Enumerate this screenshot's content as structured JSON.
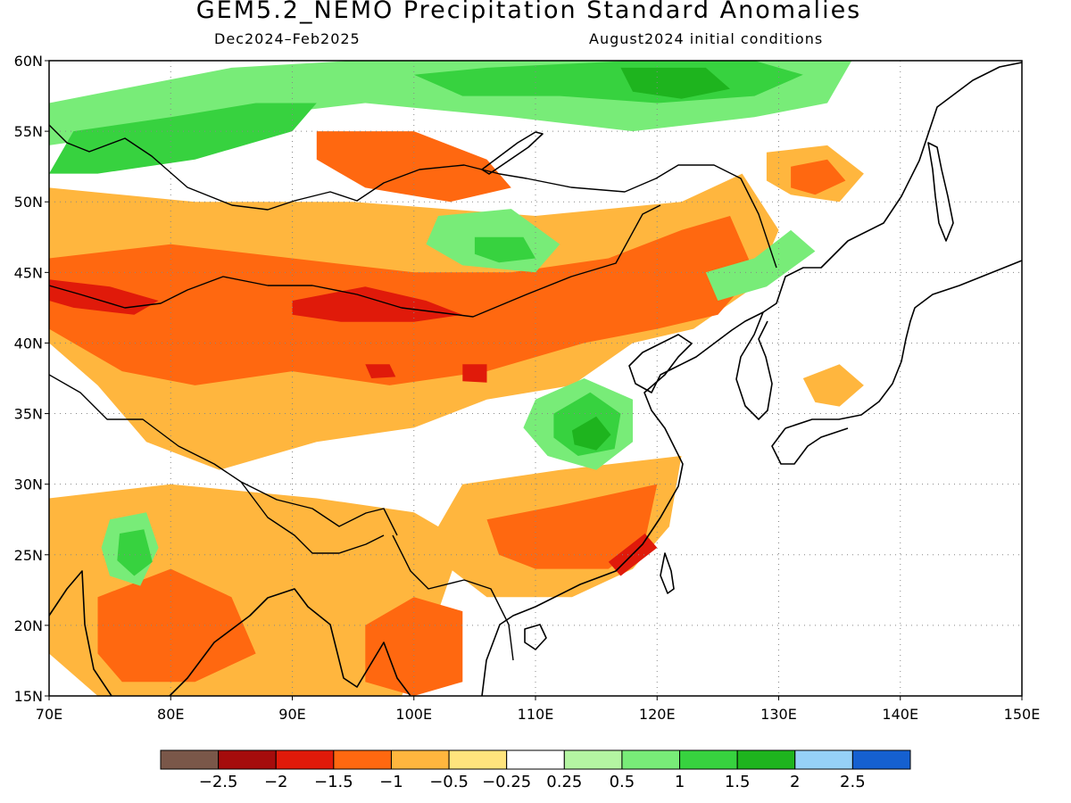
{
  "title": "GEM5.2_NEMO Precipitation Standard Anomalies",
  "season": "Dec2024–Feb2025",
  "initial_conditions": "August2024 initial conditions",
  "map": {
    "lon_range": [
      70,
      150
    ],
    "lat_range": [
      15,
      60
    ],
    "lon_ticks": [
      {
        "v": 70,
        "label": "70E"
      },
      {
        "v": 80,
        "label": "80E"
      },
      {
        "v": 90,
        "label": "90E"
      },
      {
        "v": 100,
        "label": "100E"
      },
      {
        "v": 110,
        "label": "110E"
      },
      {
        "v": 120,
        "label": "120E"
      },
      {
        "v": 130,
        "label": "130E"
      },
      {
        "v": 140,
        "label": "140E"
      },
      {
        "v": 150,
        "label": "150E"
      }
    ],
    "lat_ticks": [
      {
        "v": 15,
        "label": "15N"
      },
      {
        "v": 20,
        "label": "20N"
      },
      {
        "v": 25,
        "label": "25N"
      },
      {
        "v": 30,
        "label": "30N"
      },
      {
        "v": 35,
        "label": "35N"
      },
      {
        "v": 40,
        "label": "40N"
      },
      {
        "v": 45,
        "label": "45N"
      },
      {
        "v": 50,
        "label": "50N"
      },
      {
        "v": 55,
        "label": "55N"
      },
      {
        "v": 60,
        "label": "60N"
      }
    ],
    "grid": "dotted",
    "anomaly_regions": [
      {
        "level": -0.5,
        "poly": [
          [
            70,
            51
          ],
          [
            82,
            50
          ],
          [
            95,
            50
          ],
          [
            110,
            49
          ],
          [
            122,
            50
          ],
          [
            127,
            52
          ],
          [
            130,
            48
          ],
          [
            128,
            44
          ],
          [
            123,
            41
          ],
          [
            118,
            40
          ],
          [
            113,
            37
          ],
          [
            106,
            36
          ],
          [
            100,
            34
          ],
          [
            92,
            33
          ],
          [
            84,
            31
          ],
          [
            78,
            33
          ],
          [
            74,
            37
          ],
          [
            70,
            40
          ]
        ]
      },
      {
        "level": -1,
        "poly": [
          [
            70,
            46
          ],
          [
            80,
            47
          ],
          [
            90,
            46
          ],
          [
            100,
            45
          ],
          [
            108,
            45
          ],
          [
            116,
            46
          ],
          [
            122,
            48
          ],
          [
            126,
            49
          ],
          [
            128,
            45
          ],
          [
            125,
            42
          ],
          [
            120,
            41
          ],
          [
            114,
            40
          ],
          [
            106,
            38
          ],
          [
            98,
            37
          ],
          [
            90,
            38
          ],
          [
            82,
            37
          ],
          [
            76,
            38
          ],
          [
            70,
            41
          ]
        ]
      },
      {
        "level": -1,
        "poly": [
          [
            92,
            55
          ],
          [
            100,
            55
          ],
          [
            106,
            53
          ],
          [
            108,
            51
          ],
          [
            103,
            50
          ],
          [
            96,
            51
          ],
          [
            92,
            53
          ]
        ]
      },
      {
        "level": -1.5,
        "poly": [
          [
            70,
            44.5
          ],
          [
            75,
            44
          ],
          [
            79,
            43
          ],
          [
            77,
            42
          ],
          [
            72,
            42.5
          ],
          [
            70,
            43
          ]
        ]
      },
      {
        "level": -1.5,
        "poly": [
          [
            90,
            43
          ],
          [
            96,
            44
          ],
          [
            101,
            43
          ],
          [
            104,
            42
          ],
          [
            100,
            41.5
          ],
          [
            94,
            41.5
          ],
          [
            90,
            42
          ]
        ]
      },
      {
        "level": -1.5,
        "poly": [
          [
            96,
            38.5
          ],
          [
            98,
            38.5
          ],
          [
            98.5,
            37.6
          ],
          [
            96.5,
            37.5
          ]
        ]
      },
      {
        "level": -1.5,
        "poly": [
          [
            104,
            38.5
          ],
          [
            106,
            38.5
          ],
          [
            106,
            37.2
          ],
          [
            104,
            37.3
          ]
        ]
      },
      {
        "level": -0.5,
        "poly": [
          [
            104,
            30
          ],
          [
            112,
            31
          ],
          [
            122,
            32
          ],
          [
            121,
            27
          ],
          [
            118,
            24
          ],
          [
            113,
            22
          ],
          [
            106,
            22
          ],
          [
            103,
            24
          ],
          [
            102,
            27
          ]
        ]
      },
      {
        "level": -1,
        "poly": [
          [
            106,
            27.5
          ],
          [
            112,
            28.5
          ],
          [
            120,
            30
          ],
          [
            119,
            26
          ],
          [
            116,
            24
          ],
          [
            110,
            24
          ],
          [
            107,
            25
          ]
        ]
      },
      {
        "level": -1.5,
        "poly": [
          [
            116,
            24.5
          ],
          [
            119,
            26.5
          ],
          [
            120,
            25.5
          ],
          [
            117,
            23.5
          ]
        ]
      },
      {
        "level": -0.5,
        "poly": [
          [
            70,
            29
          ],
          [
            80,
            30
          ],
          [
            92,
            29
          ],
          [
            100,
            28
          ],
          [
            104,
            26
          ],
          [
            102,
            21
          ],
          [
            99,
            15
          ],
          [
            84,
            15
          ],
          [
            74,
            15
          ],
          [
            70,
            18
          ]
        ]
      },
      {
        "level": -1,
        "poly": [
          [
            74,
            22
          ],
          [
            80,
            24
          ],
          [
            85,
            22
          ],
          [
            87,
            18
          ],
          [
            82,
            16
          ],
          [
            76,
            16
          ],
          [
            74,
            18
          ]
        ]
      },
      {
        "level": -1,
        "poly": [
          [
            96,
            20
          ],
          [
            100,
            22
          ],
          [
            104,
            21
          ],
          [
            104,
            16
          ],
          [
            100,
            15
          ],
          [
            96,
            16
          ]
        ]
      },
      {
        "level": -0.5,
        "poly": [
          [
            129,
            53.5
          ],
          [
            134,
            54
          ],
          [
            137,
            52
          ],
          [
            135,
            50
          ],
          [
            131,
            50.5
          ],
          [
            129,
            51.5
          ]
        ]
      },
      {
        "level": -1,
        "poly": [
          [
            131,
            52.5
          ],
          [
            134,
            53
          ],
          [
            135.5,
            51.5
          ],
          [
            133,
            50.5
          ],
          [
            131,
            51
          ]
        ]
      },
      {
        "level": -0.5,
        "poly": [
          [
            132,
            37.5
          ],
          [
            135,
            38.5
          ],
          [
            137,
            37
          ],
          [
            135,
            35.5
          ],
          [
            133,
            35.8
          ]
        ]
      },
      {
        "level": 0.5,
        "poly": [
          [
            70,
            57
          ],
          [
            76,
            58
          ],
          [
            85,
            59.5
          ],
          [
            95,
            60
          ],
          [
            122,
            60
          ],
          [
            136,
            60
          ],
          [
            134,
            57
          ],
          [
            128,
            56
          ],
          [
            118,
            55
          ],
          [
            108,
            56
          ],
          [
            96,
            57
          ],
          [
            86,
            56
          ],
          [
            78,
            55
          ],
          [
            70,
            54
          ]
        ]
      },
      {
        "level": 1,
        "poly": [
          [
            72,
            55
          ],
          [
            80,
            56
          ],
          [
            87,
            57
          ],
          [
            92,
            57
          ],
          [
            90,
            55
          ],
          [
            82,
            53
          ],
          [
            74,
            52
          ],
          [
            70,
            52
          ]
        ]
      },
      {
        "level": 1,
        "poly": [
          [
            100,
            59
          ],
          [
            106,
            59.5
          ],
          [
            118,
            60
          ],
          [
            128,
            60
          ],
          [
            132,
            59
          ],
          [
            128,
            57.5
          ],
          [
            120,
            57
          ],
          [
            112,
            57.5
          ],
          [
            104,
            57.5
          ]
        ]
      },
      {
        "level": 1.5,
        "poly": [
          [
            117,
            59.5
          ],
          [
            124,
            59.5
          ],
          [
            126,
            58
          ],
          [
            122,
            57.3
          ],
          [
            118,
            57.8
          ]
        ]
      },
      {
        "level": 0.5,
        "poly": [
          [
            102,
            49
          ],
          [
            108,
            49.5
          ],
          [
            112,
            47
          ],
          [
            110,
            45
          ],
          [
            104,
            45.5
          ],
          [
            101,
            47
          ]
        ]
      },
      {
        "level": 1,
        "poly": [
          [
            105,
            47.5
          ],
          [
            109,
            47.5
          ],
          [
            110,
            46
          ],
          [
            107,
            45.7
          ],
          [
            105,
            46.3
          ]
        ]
      },
      {
        "level": 0.5,
        "poly": [
          [
            110,
            36
          ],
          [
            114,
            37.5
          ],
          [
            118,
            36
          ],
          [
            118,
            33
          ],
          [
            115,
            31
          ],
          [
            111,
            32
          ],
          [
            109,
            34
          ]
        ]
      },
      {
        "level": 1,
        "poly": [
          [
            111.5,
            35
          ],
          [
            114.5,
            36.5
          ],
          [
            117,
            35
          ],
          [
            116.5,
            32.5
          ],
          [
            113.5,
            32
          ],
          [
            111.5,
            33.3
          ]
        ]
      },
      {
        "level": 1.5,
        "poly": [
          [
            113,
            33.8
          ],
          [
            115,
            34.8
          ],
          [
            116.2,
            33.5
          ],
          [
            115,
            32.4
          ],
          [
            113.2,
            32.8
          ]
        ]
      },
      {
        "level": 0.5,
        "poly": [
          [
            75,
            27.5
          ],
          [
            78,
            28
          ],
          [
            79,
            25.5
          ],
          [
            77.5,
            22.8
          ],
          [
            75,
            23.5
          ],
          [
            74.3,
            25.5
          ]
        ]
      },
      {
        "level": 1,
        "poly": [
          [
            75.8,
            26.5
          ],
          [
            77.8,
            26.8
          ],
          [
            78.5,
            24.5
          ],
          [
            77,
            23.5
          ],
          [
            75.6,
            24.6
          ]
        ]
      },
      {
        "level": 0.5,
        "poly": [
          [
            124,
            45
          ],
          [
            128,
            46
          ],
          [
            131,
            48
          ],
          [
            133,
            46.5
          ],
          [
            129,
            44
          ],
          [
            125,
            43
          ]
        ]
      }
    ]
  },
  "legend": {
    "colors": [
      "#7a5749",
      "#a50c0c",
      "#e01a0a",
      "#ff6810",
      "#ffb63e",
      "#ffe47d",
      "#ffffff",
      "#b4f5a2",
      "#78ec78",
      "#37d23f",
      "#1eb41e",
      "#96d1f7",
      "#1560d0"
    ],
    "labels": [
      "−2.5",
      "−2",
      "−1.5",
      "−1",
      "−0.5",
      "−0.25",
      "0.25",
      "0.5",
      "1",
      "1.5",
      "2",
      "2.5"
    ],
    "levels": [
      -2.5,
      -2,
      -1.5,
      -1,
      -0.5,
      -0.25,
      0.25,
      0.5,
      1,
      1.5,
      2,
      2.5
    ]
  }
}
